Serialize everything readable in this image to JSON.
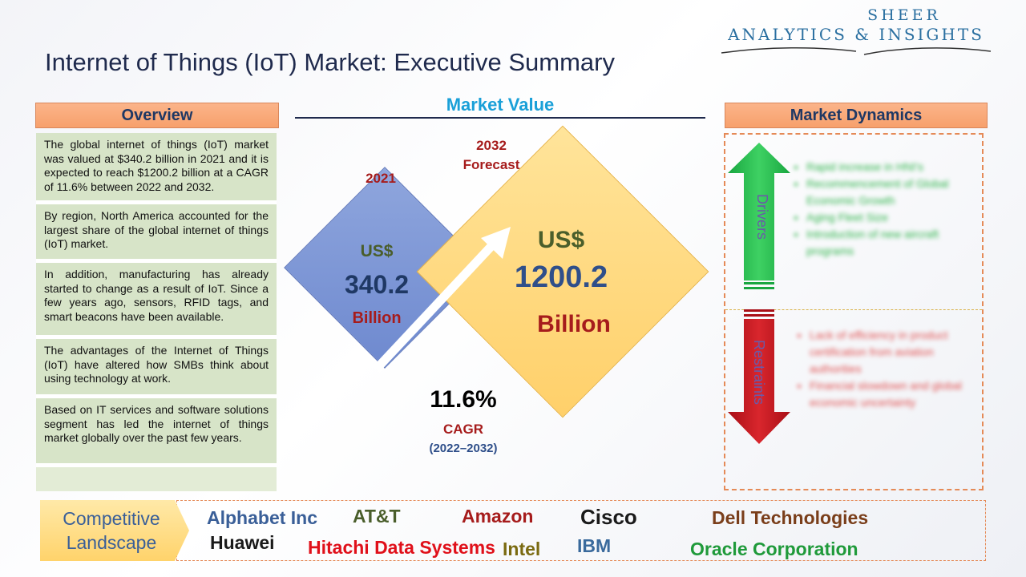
{
  "logo": {
    "line1": "SHEER",
    "line2": "ANALYTICS & INSIGHTS"
  },
  "title": "Internet of Things (IoT) Market: Executive Summary",
  "overview": {
    "header": "Overview",
    "items": [
      "The global internet of things (IoT) market was valued at $340.2 billion in 2021 and it is expected to reach $1200.2 billion at a CAGR of 11.6% between 2022 and 2032.",
      "By region, North America accounted for the largest share of the global internet of things (IoT) market.",
      "In addition, manufacturing has already started to change as a result of IoT. Since a few years ago, sensors, RFID tags, and smart beacons have been available.",
      "The advantages of the Internet of Things (IoT) have altered how SMBs think about using technology at work.",
      "Based on IT services and software solutions segment has led the internet of things market globally over the past few years."
    ]
  },
  "market_value": {
    "title": "Market Value",
    "year_2021": "2021",
    "year_2032_l1": "2032",
    "year_2032_l2": "Forecast",
    "currency_2021": "US$",
    "value_2021": "340.2",
    "unit_2021": "Billion",
    "currency_2032": "US$",
    "value_2032": "1200.2",
    "unit_2032": "Billion",
    "cagr_value": "11.6%",
    "cagr_label": "CAGR",
    "cagr_range": "(2022–2032)"
  },
  "dynamics": {
    "header": "Market Dynamics",
    "drivers_label": "Drivers",
    "restraints_label": "Restraints",
    "drivers": [
      "Rapid increase in HNI's",
      "Recommencement of Global Economic Growth",
      "Aging Fleet Size",
      "Introduction of new aircraft programs"
    ],
    "restraints": [
      "Lack of efficiency in product certification from aviation authorities",
      "Financial slowdown and global economic uncertainty"
    ]
  },
  "competitive": {
    "label_l1": "Competitive",
    "label_l2": "Landscape",
    "companies": [
      "Alphabet Inc",
      "AT&T",
      "Amazon",
      "Cisco",
      "Dell Technologies",
      "Huawei",
      "Hitachi Data Systems",
      "Intel",
      "IBM",
      "Oracle Corporation"
    ]
  },
  "colors": {
    "navy": "#1f3864",
    "orange_header": "#f7a06c",
    "overview_bg": "#d7e4c8",
    "drivers_green": "#2db34a",
    "restraints_red": "#c0151c",
    "company_colors": [
      "#3a5f98",
      "#4a5e2b",
      "#a61c1c",
      "#1a1a1a",
      "#7a3e1a",
      "#1a1a1a",
      "#e0101a",
      "#7a6a10",
      "#3a6a9c",
      "#1f9a3a"
    ]
  }
}
